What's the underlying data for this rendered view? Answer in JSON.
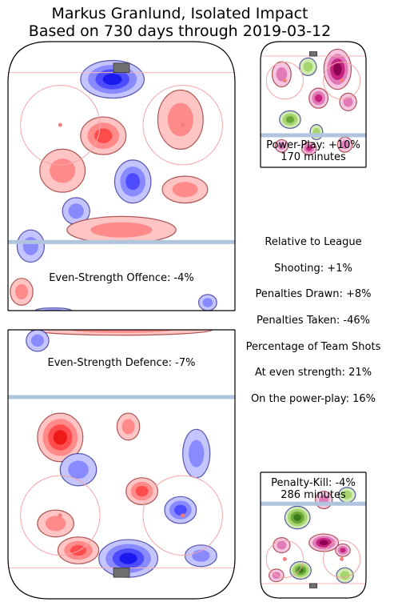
{
  "title": {
    "line1": "Markus Granlund, Isolated Impact",
    "line2": "Based on 730 days through 2019-03-12"
  },
  "colors": {
    "positive": "#ff4d4d",
    "negative": "#4d4dff",
    "pp_positive": "#8e0152",
    "pp_negative": "#4d9221",
    "rink_lines": "#b0c4de",
    "crease_circle": "#f4a6a6"
  },
  "stats": {
    "header": "Relative to League",
    "shooting": "Shooting: +1%",
    "pen_drawn": "Penalties Drawn: +8%",
    "pen_taken": "Penalties Taken: -46%",
    "team_shots_header": "Percentage of Team Shots",
    "even_strength": "At even strength: 21%",
    "power_play": "On the power-play: 16%"
  },
  "chart_data": [
    {
      "type": "heatmap",
      "name": "Even-Strength Offence",
      "label": "Even-Strength Offence: -4%",
      "value_percent": -4,
      "hotspots": [
        {
          "x": 0.46,
          "y": 0.14,
          "rx": 0.14,
          "ry": 0.07,
          "level": -3
        },
        {
          "x": 0.42,
          "y": 0.35,
          "rx": 0.1,
          "ry": 0.07,
          "level": 2
        },
        {
          "x": 0.76,
          "y": 0.29,
          "rx": 0.1,
          "ry": 0.11,
          "level": 1
        },
        {
          "x": 0.24,
          "y": 0.48,
          "rx": 0.1,
          "ry": 0.08,
          "level": 1
        },
        {
          "x": 0.55,
          "y": 0.52,
          "rx": 0.08,
          "ry": 0.08,
          "level": -2
        },
        {
          "x": 0.78,
          "y": 0.55,
          "rx": 0.1,
          "ry": 0.05,
          "level": 1
        },
        {
          "x": 0.3,
          "y": 0.63,
          "rx": 0.06,
          "ry": 0.05,
          "level": -1
        },
        {
          "x": 0.5,
          "y": 0.7,
          "rx": 0.24,
          "ry": 0.05,
          "level": 1
        },
        {
          "x": 0.1,
          "y": 0.76,
          "rx": 0.06,
          "ry": 0.06,
          "level": -1
        },
        {
          "x": 0.06,
          "y": 0.93,
          "rx": 0.05,
          "ry": 0.05,
          "level": 1
        },
        {
          "x": 0.88,
          "y": 0.97,
          "rx": 0.04,
          "ry": 0.03,
          "level": -1
        },
        {
          "x": 0.2,
          "y": 1.0,
          "rx": 0.08,
          "ry": 0.01,
          "level": -1
        }
      ]
    },
    {
      "type": "heatmap",
      "name": "Even-Strength Defence",
      "label": "Even-Strength Defence: -7%",
      "value_percent": -7,
      "hotspots": [
        {
          "x": 0.5,
          "y": 0.0,
          "rx": 0.4,
          "ry": 0.02,
          "level": 1
        },
        {
          "x": 0.13,
          "y": 0.04,
          "rx": 0.05,
          "ry": 0.04,
          "level": -1
        },
        {
          "x": 0.23,
          "y": 0.4,
          "rx": 0.1,
          "ry": 0.09,
          "level": 3
        },
        {
          "x": 0.31,
          "y": 0.52,
          "rx": 0.08,
          "ry": 0.06,
          "level": -1
        },
        {
          "x": 0.53,
          "y": 0.36,
          "rx": 0.05,
          "ry": 0.05,
          "level": 1
        },
        {
          "x": 0.83,
          "y": 0.46,
          "rx": 0.06,
          "ry": 0.09,
          "level": -1
        },
        {
          "x": 0.59,
          "y": 0.6,
          "rx": 0.07,
          "ry": 0.05,
          "level": 2
        },
        {
          "x": 0.76,
          "y": 0.67,
          "rx": 0.07,
          "ry": 0.05,
          "level": -2
        },
        {
          "x": 0.21,
          "y": 0.72,
          "rx": 0.08,
          "ry": 0.05,
          "level": 1
        },
        {
          "x": 0.31,
          "y": 0.82,
          "rx": 0.09,
          "ry": 0.05,
          "level": 2
        },
        {
          "x": 0.53,
          "y": 0.85,
          "rx": 0.13,
          "ry": 0.07,
          "level": -3
        },
        {
          "x": 0.85,
          "y": 0.84,
          "rx": 0.07,
          "ry": 0.04,
          "level": -1
        }
      ]
    },
    {
      "type": "heatmap",
      "name": "Power-Play",
      "label_line1": "Power-Play: +10%",
      "label_line2": "170 minutes",
      "value_percent": 10,
      "minutes": 170,
      "hotspots": [
        {
          "x": 0.73,
          "y": 0.22,
          "rx": 0.13,
          "ry": 0.16,
          "level": 3
        },
        {
          "x": 0.2,
          "y": 0.26,
          "rx": 0.09,
          "ry": 0.1,
          "level": 1
        },
        {
          "x": 0.45,
          "y": 0.2,
          "rx": 0.08,
          "ry": 0.07,
          "level": -1
        },
        {
          "x": 0.55,
          "y": 0.45,
          "rx": 0.09,
          "ry": 0.08,
          "level": 2
        },
        {
          "x": 0.83,
          "y": 0.48,
          "rx": 0.08,
          "ry": 0.07,
          "level": 1
        },
        {
          "x": 0.28,
          "y": 0.62,
          "rx": 0.1,
          "ry": 0.07,
          "level": -2
        },
        {
          "x": 0.53,
          "y": 0.72,
          "rx": 0.06,
          "ry": 0.06,
          "level": -1
        },
        {
          "x": 0.46,
          "y": 0.85,
          "rx": 0.07,
          "ry": 0.05,
          "level": 2
        },
        {
          "x": 0.8,
          "y": 0.82,
          "rx": 0.07,
          "ry": 0.06,
          "level": 1
        },
        {
          "x": 0.2,
          "y": 0.83,
          "rx": 0.06,
          "ry": 0.05,
          "level": 1
        }
      ]
    },
    {
      "type": "heatmap",
      "name": "Penalty-Kill",
      "label_line1": "Penalty-Kill: -4%",
      "label_line2": "286 minutes",
      "value_percent": -4,
      "minutes": 286,
      "hotspots": [
        {
          "x": 0.35,
          "y": 0.36,
          "rx": 0.12,
          "ry": 0.09,
          "level": -3
        },
        {
          "x": 0.6,
          "y": 0.22,
          "rx": 0.08,
          "ry": 0.07,
          "level": 1
        },
        {
          "x": 0.82,
          "y": 0.18,
          "rx": 0.08,
          "ry": 0.06,
          "level": -1
        },
        {
          "x": 0.6,
          "y": 0.56,
          "rx": 0.14,
          "ry": 0.07,
          "level": 3
        },
        {
          "x": 0.78,
          "y": 0.62,
          "rx": 0.07,
          "ry": 0.05,
          "level": 2
        },
        {
          "x": 0.2,
          "y": 0.58,
          "rx": 0.08,
          "ry": 0.06,
          "level": 1
        },
        {
          "x": 0.38,
          "y": 0.78,
          "rx": 0.1,
          "ry": 0.07,
          "level": -3
        },
        {
          "x": 0.8,
          "y": 0.82,
          "rx": 0.08,
          "ry": 0.06,
          "level": -1
        },
        {
          "x": 0.15,
          "y": 0.82,
          "rx": 0.07,
          "ry": 0.05,
          "level": 1
        }
      ]
    }
  ]
}
